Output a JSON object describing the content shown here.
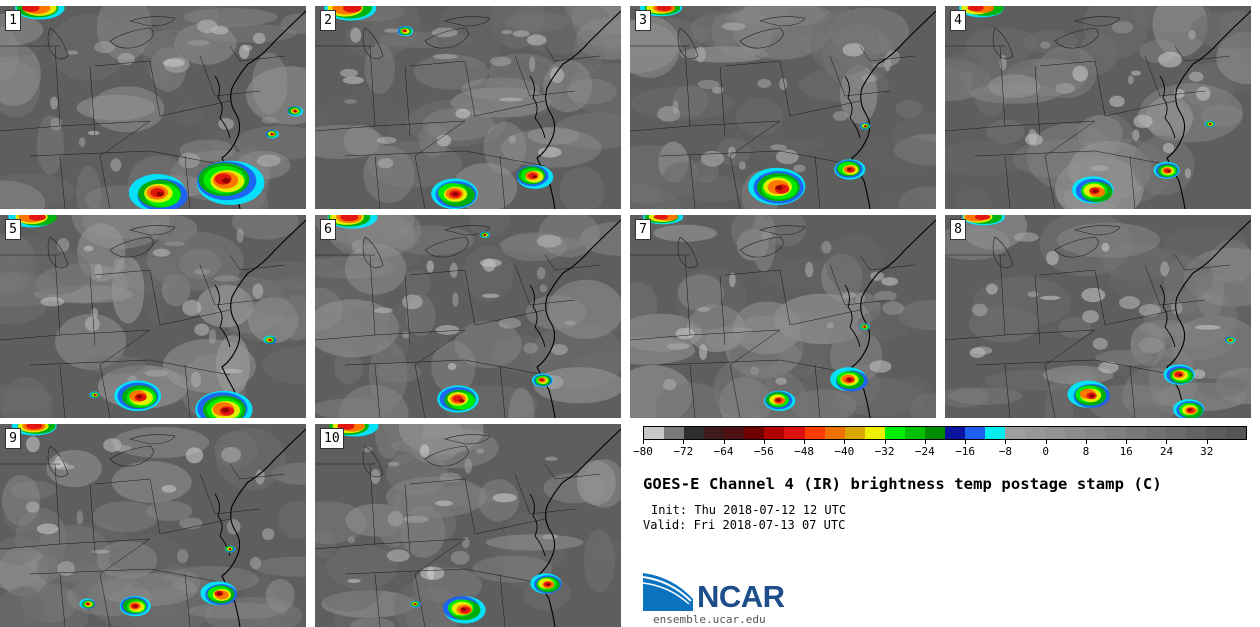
{
  "panels": [
    {
      "label": "1"
    },
    {
      "label": "2"
    },
    {
      "label": "3"
    },
    {
      "label": "4"
    },
    {
      "label": "5"
    },
    {
      "label": "6"
    },
    {
      "label": "7"
    },
    {
      "label": "8"
    },
    {
      "label": "9"
    },
    {
      "label": "10"
    }
  ],
  "colorbar": {
    "min": -80,
    "max": 40,
    "step": 4,
    "tick_labels": [
      "−80",
      "−72",
      "−64",
      "−56",
      "−48",
      "−40",
      "−32",
      "−24",
      "−16",
      "−8",
      "0",
      "8",
      "16",
      "24",
      "32"
    ],
    "tick_values": [
      -80,
      -72,
      -64,
      -56,
      -48,
      -40,
      -32,
      -24,
      -16,
      -8,
      0,
      8,
      16,
      24,
      32
    ],
    "colors": [
      "#c8c8c8",
      "#7a7a7a",
      "#2e2e2e",
      "#3f1a1a",
      "#4e1010",
      "#700000",
      "#b00000",
      "#dd1010",
      "#ff3c00",
      "#f07000",
      "#d8a800",
      "#eeee00",
      "#00ee00",
      "#00c000",
      "#008c00",
      "#0a14a0",
      "#1e5ff0",
      "#00eeee",
      "#9e9e9e",
      "#989898",
      "#929292",
      "#8c8c8c",
      "#868686",
      "#7f7f7f",
      "#787878",
      "#717171",
      "#6a6a6a",
      "#636363",
      "#5c5c5c",
      "#555555"
    ]
  },
  "title": "GOES-E Channel 4 (IR) brightness temp postage stamp (C)",
  "init_line": "Init: Thu 2018-07-12 12 UTC",
  "valid_line": "Valid: Fri 2018-07-13 07 UTC",
  "logo": {
    "text": "NCAR",
    "url": "ensemble.ucar.edu",
    "color": "#1d4e89",
    "accent": "#0a73c0"
  }
}
